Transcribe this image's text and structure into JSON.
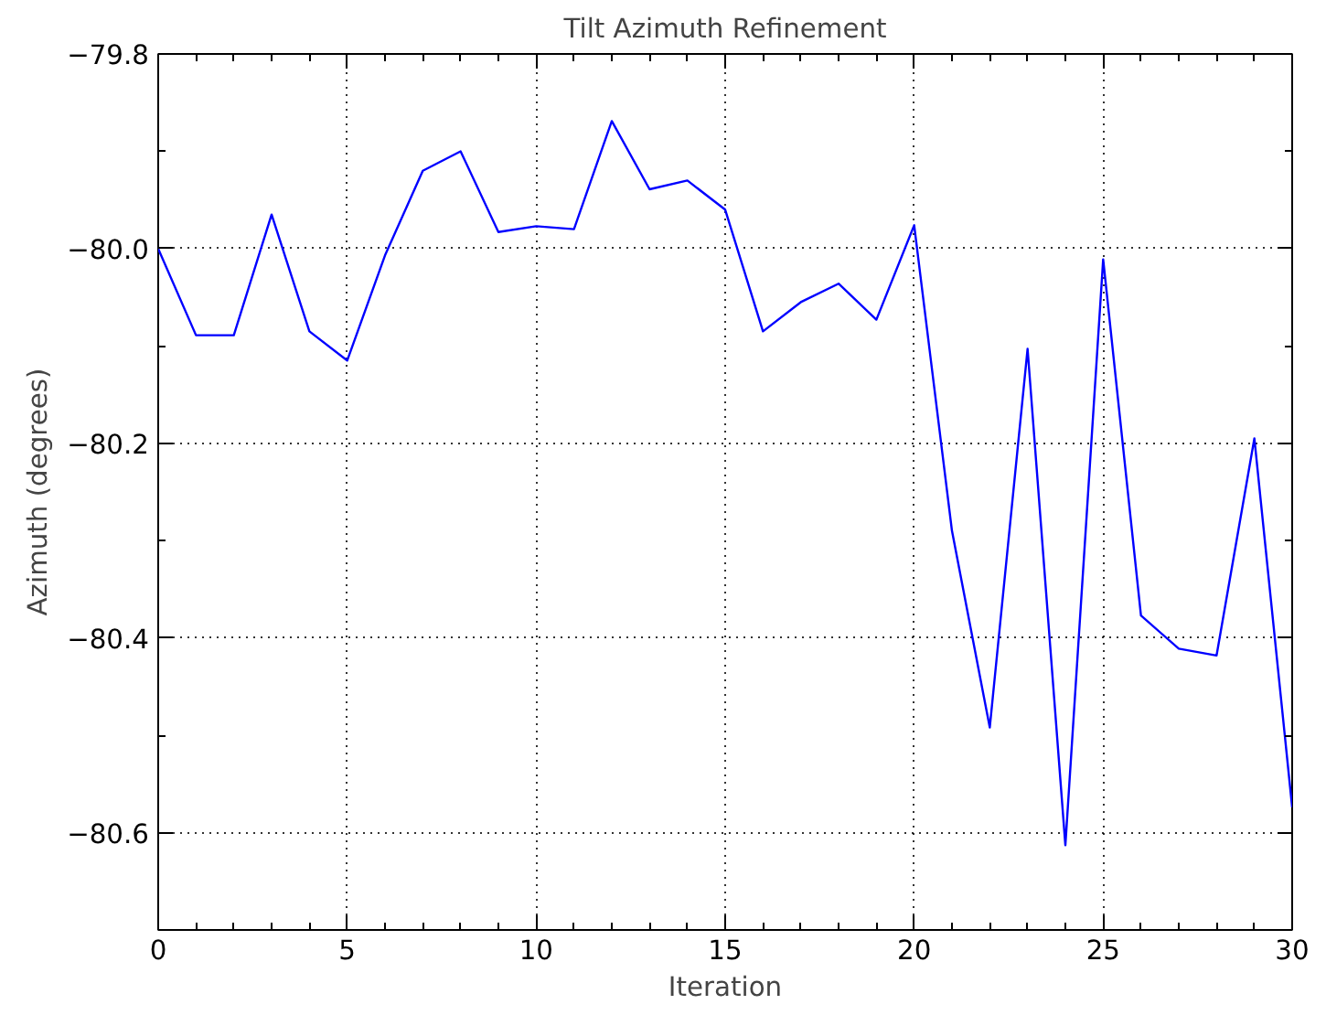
{
  "chart_data": {
    "type": "line",
    "title": "Tilt Azimuth Refinement",
    "xlabel": "Iteration",
    "ylabel": "Azimuth (degrees)",
    "x": [
      0,
      1,
      2,
      3,
      4,
      5,
      6,
      7,
      8,
      9,
      10,
      11,
      12,
      13,
      14,
      15,
      16,
      17,
      18,
      19,
      20,
      21,
      22,
      23,
      24,
      25,
      26,
      27,
      28,
      29,
      30
    ],
    "series": [
      {
        "color": "#0000ff",
        "values": [
          -80.0,
          -80.089,
          -80.089,
          -79.965,
          -80.085,
          -80.115,
          -80.007,
          -79.92,
          -79.9,
          -79.983,
          -79.977,
          -79.98,
          -79.869,
          -79.939,
          -79.93,
          -79.96,
          -80.085,
          -80.055,
          -80.036,
          -80.073,
          -79.976,
          -80.29,
          -80.492,
          -80.103,
          -80.613,
          -80.011,
          -80.377,
          -80.411,
          -80.418,
          -80.195,
          -80.574
        ]
      }
    ],
    "xlim": [
      0,
      30
    ],
    "xticks": [
      0,
      5,
      10,
      15,
      20,
      25,
      30
    ],
    "ylim": [
      -80.7,
      -79.8
    ],
    "yticks": [
      {
        "value": -79.8,
        "label": "−79.8"
      },
      {
        "value": -80.0,
        "label": "−80.0"
      },
      {
        "value": -80.2,
        "label": "−80.2"
      },
      {
        "value": -80.4,
        "label": "−80.4"
      },
      {
        "value": -80.6,
        "label": "−80.6"
      },
      {
        "value": -79.9,
        "label": null
      },
      {
        "value": -80.1,
        "label": null
      },
      {
        "value": -80.3,
        "label": null
      },
      {
        "value": -80.5,
        "label": null
      },
      {
        "value": -80.7,
        "label": null
      }
    ],
    "grid": true,
    "marker": "none",
    "line_style": "solid"
  }
}
